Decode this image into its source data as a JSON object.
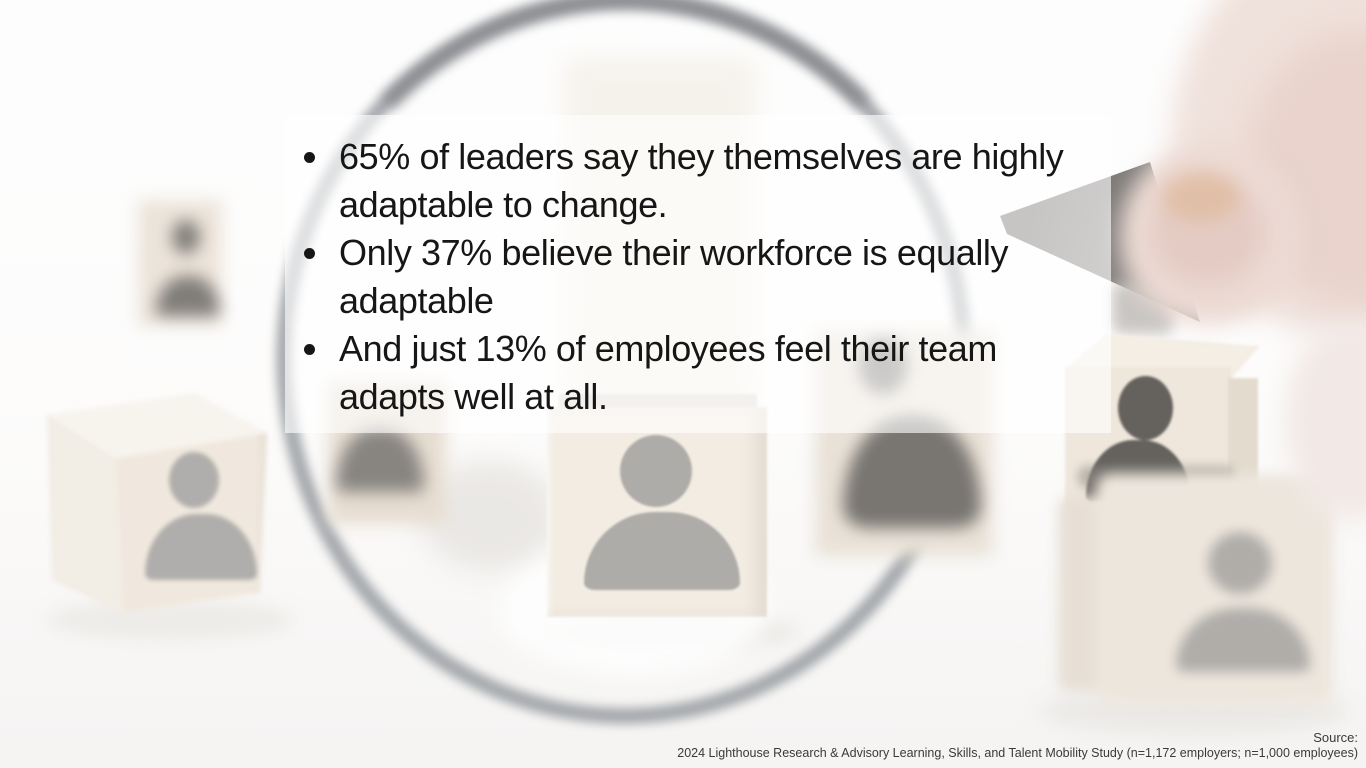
{
  "slide": {
    "bullets": [
      "65% of leaders say they themselves are highly adaptable to change.",
      "Only 37% believe their workforce is equally adaptable",
      "And just 13% of employees feel their team adapts well at all."
    ],
    "source": {
      "label": "Source:",
      "citation": "2024 Lighthouse Research & Advisory Learning, Skills, and Talent Mobility Study (n=1,172 employers; n=1,000 employees)"
    },
    "stats": {
      "leaders_adaptable_pct": 65,
      "workforce_adaptable_pct": 37,
      "employees_team_adapts_pct": 13
    }
  },
  "colors": {
    "bullet-text": "#161616",
    "source-text": "#3a3a3a",
    "wood-light": "#eee4d6",
    "person-icon-gray": "#8c8984",
    "person-icon-dark": "#231e18",
    "ring-gray": "#6a7077",
    "skin-pink": "#e4cac1"
  }
}
